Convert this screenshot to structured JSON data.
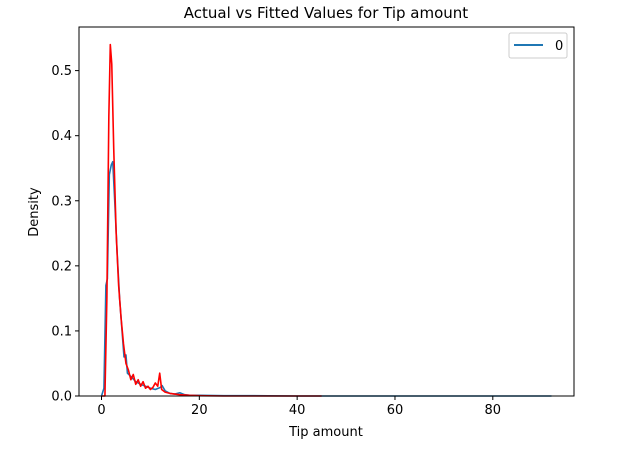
{
  "chart_data": {
    "type": "line",
    "title": "Actual vs Fitted Values for Tip amount",
    "xlabel": "Tip amount",
    "ylabel": "Density",
    "xlim": [
      -4.6,
      96.6
    ],
    "ylim": [
      0,
      0.567
    ],
    "xticks": [
      0,
      20,
      40,
      60,
      80
    ],
    "yticks": [
      0.0,
      0.1,
      0.2,
      0.3,
      0.4,
      0.5
    ],
    "xtick_labels": [
      "0",
      "20",
      "40",
      "60",
      "80"
    ],
    "ytick_labels": [
      "0.0",
      "0.1",
      "0.2",
      "0.3",
      "0.4",
      "0.5"
    ],
    "grid": false,
    "legend": {
      "placement": "top-right",
      "entries": [
        "0"
      ]
    },
    "series": [
      {
        "name": "0",
        "color": "#1f77b4",
        "points": [
          [
            0,
            0.0
          ],
          [
            0.5,
            0.012
          ],
          [
            0.9,
            0.17
          ],
          [
            1.2,
            0.18
          ],
          [
            1.6,
            0.34
          ],
          [
            2.0,
            0.355
          ],
          [
            2.3,
            0.36
          ],
          [
            2.7,
            0.3
          ],
          [
            3.2,
            0.22
          ],
          [
            3.7,
            0.15
          ],
          [
            4.2,
            0.1
          ],
          [
            4.6,
            0.06
          ],
          [
            5.0,
            0.063
          ],
          [
            5.3,
            0.035
          ],
          [
            6.0,
            0.03
          ],
          [
            7.0,
            0.022
          ],
          [
            8.0,
            0.018
          ],
          [
            9.0,
            0.015
          ],
          [
            10.0,
            0.012
          ],
          [
            11.0,
            0.01
          ],
          [
            12.0,
            0.013
          ],
          [
            12.4,
            0.016
          ],
          [
            13.0,
            0.008
          ],
          [
            14.0,
            0.004
          ],
          [
            15.0,
            0.003
          ],
          [
            16.0,
            0.005
          ],
          [
            17.0,
            0.002
          ],
          [
            18.0,
            0.001
          ],
          [
            20.0,
            0.001
          ],
          [
            25.0,
            0.0005
          ],
          [
            30.0,
            0.0005
          ],
          [
            40.0,
            0.0
          ],
          [
            50.0,
            0.0
          ],
          [
            60.0,
            0.0
          ],
          [
            70.0,
            0.0
          ],
          [
            80.0,
            0.0
          ],
          [
            92.0,
            0.0
          ]
        ]
      },
      {
        "color": "#ff0000",
        "points": [
          [
            0,
            0.0
          ],
          [
            0.7,
            0.0
          ],
          [
            1.1,
            0.15
          ],
          [
            1.5,
            0.43
          ],
          [
            1.8,
            0.54
          ],
          [
            2.1,
            0.51
          ],
          [
            2.5,
            0.38
          ],
          [
            3.0,
            0.25
          ],
          [
            3.5,
            0.17
          ],
          [
            4.0,
            0.12
          ],
          [
            4.5,
            0.08
          ],
          [
            5.0,
            0.05
          ],
          [
            5.5,
            0.04
          ],
          [
            6.0,
            0.025
          ],
          [
            6.5,
            0.033
          ],
          [
            7.0,
            0.018
          ],
          [
            7.5,
            0.025
          ],
          [
            8.0,
            0.015
          ],
          [
            8.5,
            0.022
          ],
          [
            9.0,
            0.012
          ],
          [
            9.5,
            0.015
          ],
          [
            10.0,
            0.01
          ],
          [
            10.5,
            0.013
          ],
          [
            11.0,
            0.02
          ],
          [
            11.5,
            0.015
          ],
          [
            11.9,
            0.035
          ],
          [
            12.3,
            0.01
          ],
          [
            13.0,
            0.006
          ],
          [
            14.0,
            0.004
          ],
          [
            15.0,
            0.003
          ],
          [
            16.0,
            0.002
          ],
          [
            18.0,
            0.001
          ],
          [
            20.0,
            0.0005
          ],
          [
            25.0,
            0.0
          ],
          [
            30.0,
            0.0
          ],
          [
            35.0,
            0.0
          ],
          [
            40.0,
            0.0
          ],
          [
            45.0,
            0.0
          ]
        ]
      }
    ]
  }
}
